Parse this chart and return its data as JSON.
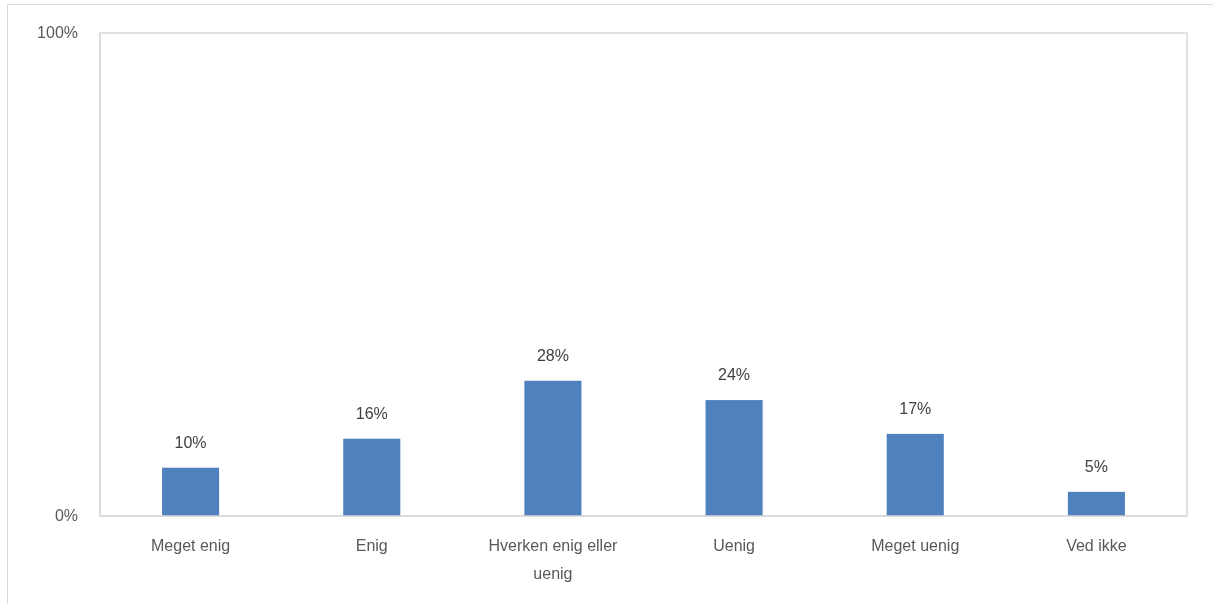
{
  "chart_data": {
    "type": "bar",
    "categories": [
      "Meget enig",
      "Enig",
      "Hverken enig eller uenig",
      "Uenig",
      "Meget uenig",
      "Ved ikke"
    ],
    "values": [
      10,
      16,
      28,
      24,
      17,
      5
    ],
    "color": "#4f81bd",
    "value_labels": [
      "10%",
      "16%",
      "28%",
      "24%",
      "17%",
      "5%"
    ],
    "ylim": [
      0,
      100
    ],
    "yticks": [
      {
        "value": 0,
        "label": "0%"
      },
      {
        "value": 100,
        "label": "100%"
      }
    ]
  }
}
